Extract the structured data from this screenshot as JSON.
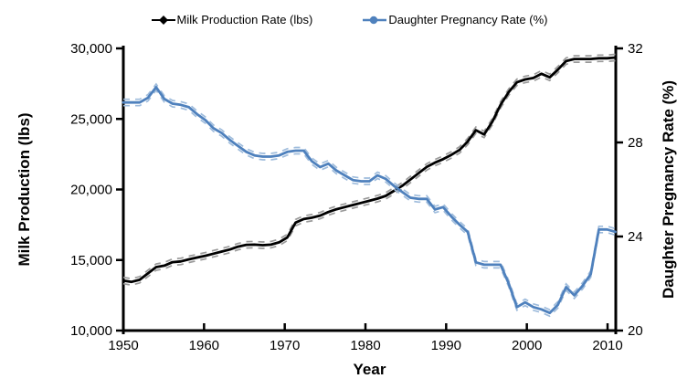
{
  "chart_data": {
    "type": "line",
    "title": "",
    "xlabel": "Year",
    "ylabel_left": "Milk Production (lbs)",
    "ylabel_right": "Daughter Pregnancy Rate (%)",
    "legend_position": "top-center",
    "grid": false,
    "x_axis": {
      "min": 1950,
      "max": 2010,
      "ticks": [
        1950,
        1960,
        1970,
        1980,
        1990,
        2000,
        2010
      ]
    },
    "left_axis": {
      "min": 10000,
      "max": 30000,
      "tick_values": [
        10000,
        15000,
        20000,
        25000,
        30000
      ],
      "tick_labels": [
        "10,000",
        "15,000",
        "20,000",
        "25,000",
        "30,000"
      ]
    },
    "right_axis": {
      "min": 20,
      "max": 32,
      "tick_values": [
        20,
        24,
        28,
        32
      ],
      "tick_labels": [
        "20",
        "24",
        "28",
        "32"
      ]
    },
    "x": [
      1950,
      1951,
      1952,
      1953,
      1954,
      1955,
      1956,
      1957,
      1958,
      1959,
      1960,
      1961,
      1962,
      1963,
      1964,
      1965,
      1966,
      1967,
      1968,
      1969,
      1970,
      1971,
      1972,
      1973,
      1974,
      1975,
      1976,
      1977,
      1978,
      1979,
      1980,
      1981,
      1982,
      1983,
      1984,
      1985,
      1986,
      1987,
      1988,
      1989,
      1990,
      1991,
      1992,
      1993,
      1994,
      1995,
      1996,
      1997,
      1998,
      1999,
      2000,
      2001,
      2002,
      2003,
      2004,
      2005,
      2006,
      2007,
      2008,
      2009,
      2010
    ],
    "series": [
      {
        "name": "Milk Production Rate (lbs)",
        "axis": "left",
        "color": "#000000",
        "ci_color": "#9a9a9a",
        "marker": "diamond",
        "values": [
          13550,
          13450,
          13600,
          14050,
          14500,
          14600,
          14850,
          14900,
          15050,
          15180,
          15300,
          15450,
          15600,
          15750,
          15950,
          16080,
          16090,
          16050,
          16090,
          16250,
          16600,
          17650,
          17900,
          18000,
          18150,
          18400,
          18600,
          18750,
          18900,
          19050,
          19200,
          19350,
          19550,
          19900,
          20250,
          20700,
          21150,
          21600,
          21900,
          22150,
          22450,
          22800,
          23400,
          24200,
          23900,
          24800,
          26000,
          26900,
          27600,
          27800,
          27900,
          28200,
          27950,
          28500,
          29100,
          29250,
          29250,
          29250,
          29300,
          29300,
          29350
        ]
      },
      {
        "name": "Daughter Pregnancy Rate (%)",
        "axis": "right",
        "color": "#4f81bd",
        "ci_color": "#9fbcdc",
        "marker": "circle",
        "values": [
          29.7,
          29.7,
          29.7,
          29.9,
          30.35,
          29.85,
          29.65,
          29.6,
          29.5,
          29.2,
          28.95,
          28.6,
          28.4,
          28.1,
          27.85,
          27.6,
          27.45,
          27.4,
          27.4,
          27.45,
          27.6,
          27.65,
          27.65,
          27.2,
          26.95,
          27.1,
          26.8,
          26.6,
          26.4,
          26.35,
          26.35,
          26.6,
          26.45,
          26.15,
          25.9,
          25.65,
          25.6,
          25.6,
          25.15,
          25.25,
          24.85,
          24.5,
          24.2,
          22.9,
          22.8,
          22.8,
          22.8,
          22.0,
          21.0,
          21.2,
          21.0,
          20.9,
          20.75,
          21.1,
          21.85,
          21.5,
          21.9,
          22.4,
          24.3,
          24.3,
          24.2
        ]
      }
    ]
  }
}
